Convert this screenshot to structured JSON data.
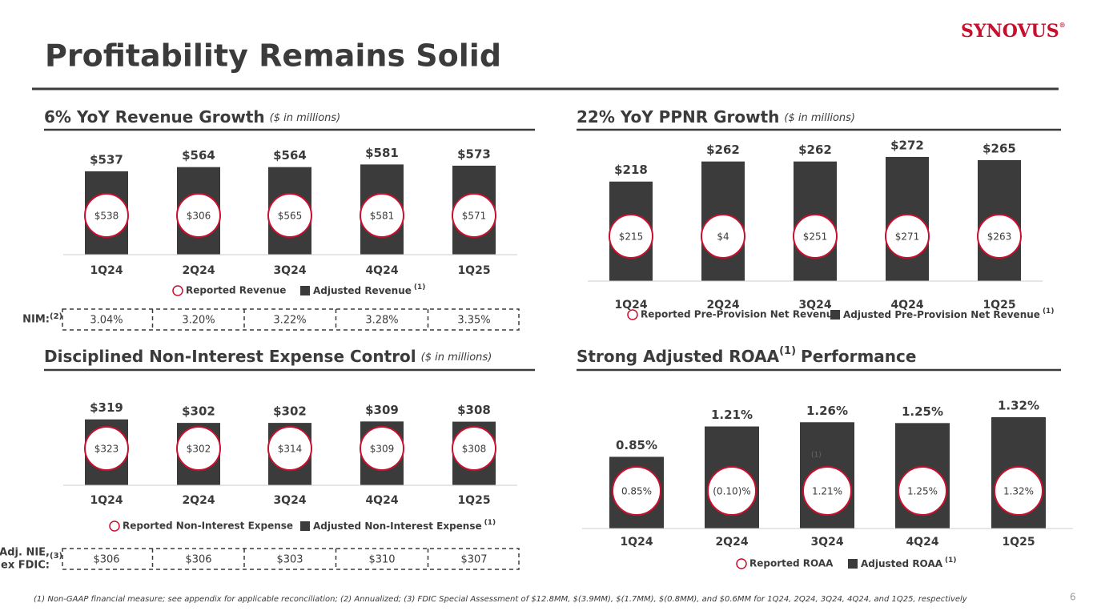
{
  "title": "Profitability Remains Solid",
  "logo": "SYNOVUS",
  "logo_mark": "®",
  "footnote": "(1)  Non-GAAP financial measure; see appendix for applicable reconciliation; (2) Annualized; (3) FDIC Special Assessment of $12.8MM, $(3.9MM), $(1.7MM), $(0.8MM), and $0.6MM for 1Q24, 2Q24, 3Q24, 4Q24, and 1Q25, respectively",
  "page_number": "6",
  "chart_data": [
    {
      "type": "bar",
      "title": "6% YoY Revenue Growth",
      "subtitle": "($ in millions)",
      "categories": [
        "1Q24",
        "2Q24",
        "3Q24",
        "4Q24",
        "1Q25"
      ],
      "ylim": [
        0,
        650
      ],
      "series": [
        {
          "name": "Adjusted Revenue",
          "note": "(1)",
          "color": "#3b3b3b",
          "values": [
            537,
            564,
            564,
            581,
            573
          ],
          "value_labels": [
            "$537",
            "$564",
            "$564",
            "$581",
            "$573"
          ]
        },
        {
          "name": "Reported Revenue",
          "color": "#c8102e",
          "values": [
            538,
            306,
            565,
            581,
            571
          ],
          "value_labels": [
            "$538",
            "$306",
            "$565",
            "$581",
            "$571"
          ]
        }
      ],
      "row": {
        "label_lines": [
          "NIM:"
        ],
        "note": "(2)",
        "values": [
          3.04,
          3.2,
          3.22,
          3.28,
          3.35
        ],
        "value_labels": [
          "3.04%",
          "3.20%",
          "3.22%",
          "3.28%",
          "3.35%"
        ]
      }
    },
    {
      "type": "bar",
      "title": "22% YoY PPNR Growth",
      "subtitle": "($ in millions)",
      "categories": [
        "1Q24",
        "2Q24",
        "3Q24",
        "4Q24",
        "1Q25"
      ],
      "ylim": [
        0,
        300
      ],
      "series": [
        {
          "name": "Adjusted Pre-Provision Net Revenue",
          "note": "(1)",
          "color": "#3b3b3b",
          "values": [
            218,
            262,
            262,
            272,
            265
          ],
          "value_labels": [
            "$218",
            "$262",
            "$262",
            "$272",
            "$265"
          ]
        },
        {
          "name": "Reported Pre-Provision Net Revenue",
          "color": "#c8102e",
          "values": [
            215,
            4,
            251,
            271,
            263
          ],
          "value_labels": [
            "$215",
            "$4",
            "$251",
            "$271",
            "$263"
          ]
        }
      ]
    },
    {
      "type": "bar",
      "title": "Disciplined Non-Interest Expense Control",
      "subtitle": "($ in millions)",
      "categories": [
        "1Q24",
        "2Q24",
        "3Q24",
        "4Q24",
        "1Q25"
      ],
      "ylim": [
        0,
        380
      ],
      "series": [
        {
          "name": "Adjusted Non-Interest Expense",
          "note": "(1)",
          "color": "#3b3b3b",
          "values": [
            319,
            302,
            302,
            309,
            308
          ],
          "value_labels": [
            "$319",
            "$302",
            "$302",
            "$309",
            "$308"
          ]
        },
        {
          "name": "Reported Non-Interest Expense",
          "color": "#c8102e",
          "values": [
            323,
            302,
            314,
            309,
            308
          ],
          "value_labels": [
            "$323",
            "$302",
            "$314",
            "$309",
            "$308"
          ]
        }
      ],
      "row": {
        "label_lines": [
          "Adj. NIE,",
          "ex FDIC:"
        ],
        "note": "(3)",
        "values": [
          306,
          306,
          303,
          310,
          307
        ],
        "value_labels": [
          "$306",
          "$306",
          "$303",
          "$310",
          "$307"
        ]
      }
    },
    {
      "type": "bar",
      "title": "Strong Adjusted ROAA",
      "title_note": "(1)",
      "title_end": "Performance",
      "categories": [
        "1Q24",
        "2Q24",
        "3Q24",
        "4Q24",
        "1Q25"
      ],
      "ylim": [
        0,
        1.5
      ],
      "annotation": "(1)",
      "series": [
        {
          "name": "Adjusted ROAA",
          "note": "(1)",
          "color": "#3b3b3b",
          "values": [
            0.85,
            1.21,
            1.26,
            1.25,
            1.32
          ],
          "value_labels": [
            "0.85%",
            "1.21%",
            "1.26%",
            "1.25%",
            "1.32%"
          ]
        },
        {
          "name": "Reported ROAA",
          "color": "#c8102e",
          "values": [
            0.85,
            -0.1,
            1.21,
            1.25,
            1.32
          ],
          "value_labels": [
            "0.85%",
            "(0.10)%",
            "1.21%",
            "1.25%",
            "1.32%"
          ]
        }
      ]
    }
  ]
}
